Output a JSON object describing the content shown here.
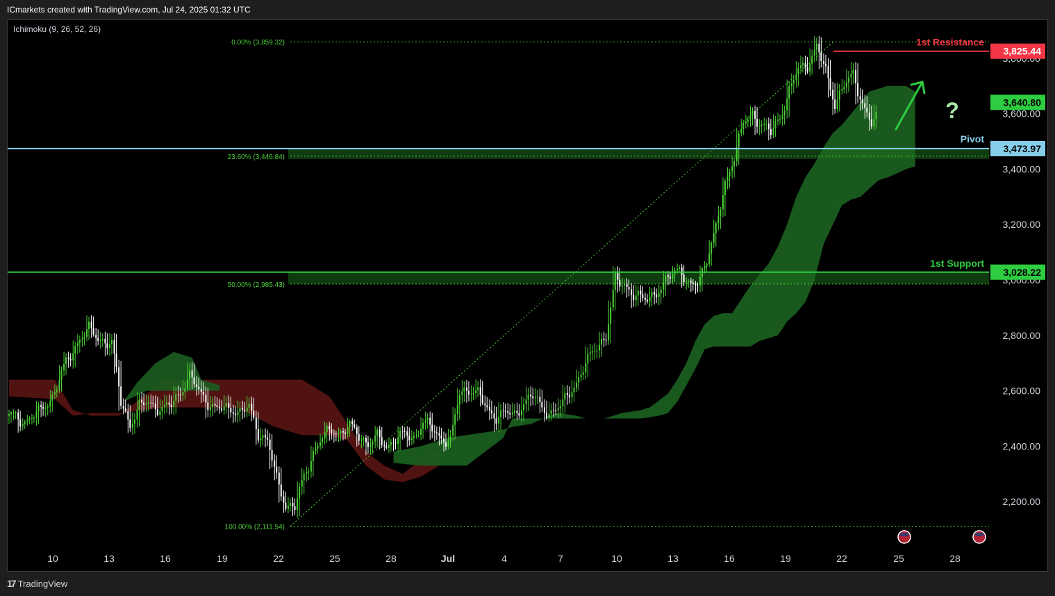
{
  "header": {
    "attribution": "ICmarkets created with TradingView.com, Jul 24, 2025 01:32 UTC"
  },
  "indicator": {
    "label": "Ichimoku (9, 26, 52, 26)"
  },
  "footer": {
    "brand": "TradingView"
  },
  "colors": {
    "background": "#000000",
    "up_candle": "#4cd137",
    "down_candle": "#ffffff",
    "bull_cloud": "#1b5e20",
    "bear_cloud": "#5a1414",
    "resistance": "#f23645",
    "pivot": "#87ceeb",
    "support": "#2ecc40",
    "fib": "#4cd137",
    "axis_text": "#d1d4dc"
  },
  "chart_data": {
    "type": "candlestick",
    "y_axis": {
      "ticks": [
        "2,200.00",
        "2,400.00",
        "2,600.00",
        "2,800.00",
        "3,000.00",
        "3,200.00",
        "3,400.00",
        "3,600.00",
        "3,800.00"
      ],
      "range": [
        2030,
        3935
      ]
    },
    "x_axis": {
      "labels": [
        "10",
        "13",
        "16",
        "19",
        "22",
        "25",
        "28",
        "Jul",
        "4",
        "7",
        "10",
        "13",
        "16",
        "19",
        "22",
        "25",
        "28"
      ]
    },
    "levels": [
      {
        "name": "1st Resistance",
        "value": 3825.44,
        "label": "3,825.44",
        "color": "#f23645"
      },
      {
        "name": "Pivot",
        "value": 3473.97,
        "label": "3,473.97",
        "color": "#87ceeb"
      },
      {
        "name": "1st Support",
        "value": 3028.22,
        "label": "3,028.22",
        "color": "#2ecc40"
      }
    ],
    "current_price": {
      "value": 3640.8,
      "label": "3,640.80"
    },
    "fibonacci": [
      {
        "ratio": "0.00%",
        "value": 3859.32,
        "label": "0.00% (3,859.32)"
      },
      {
        "ratio": "23.60%",
        "value": 3446.84,
        "label": "23.60% (3,446.84)"
      },
      {
        "ratio": "50.00%",
        "value": 2985.43,
        "label": "50.00% (2,985.43)"
      },
      {
        "ratio": "100.00%",
        "value": 2111.54,
        "label": "100.00% (2,111.54)"
      }
    ],
    "annotations": {
      "question_mark": "?"
    },
    "price_path": [
      [
        0,
        2510
      ],
      [
        3,
        2490
      ],
      [
        6,
        2520
      ],
      [
        9,
        2580
      ],
      [
        12,
        2700
      ],
      [
        15,
        2790
      ],
      [
        17,
        2820
      ],
      [
        19,
        2790
      ],
      [
        22,
        2770
      ],
      [
        24,
        2560
      ],
      [
        26,
        2480
      ],
      [
        28,
        2540
      ],
      [
        30,
        2560
      ],
      [
        33,
        2530
      ],
      [
        35,
        2550
      ],
      [
        37,
        2600
      ],
      [
        39,
        2650
      ],
      [
        41,
        2600
      ],
      [
        43,
        2560
      ],
      [
        45,
        2530
      ],
      [
        48,
        2540
      ],
      [
        50,
        2520
      ],
      [
        52,
        2540
      ],
      [
        54,
        2450
      ],
      [
        56,
        2420
      ],
      [
        58,
        2280
      ],
      [
        60,
        2190
      ],
      [
        62,
        2180
      ],
      [
        64,
        2290
      ],
      [
        66,
        2380
      ],
      [
        68,
        2430
      ],
      [
        70,
        2460
      ],
      [
        72,
        2450
      ],
      [
        74,
        2470
      ],
      [
        76,
        2440
      ],
      [
        78,
        2410
      ],
      [
        80,
        2430
      ],
      [
        82,
        2400
      ],
      [
        84,
        2430
      ],
      [
        86,
        2440
      ],
      [
        88,
        2430
      ],
      [
        90,
        2490
      ],
      [
        92,
        2460
      ],
      [
        94,
        2430
      ],
      [
        96,
        2420
      ],
      [
        98,
        2590
      ],
      [
        100,
        2610
      ],
      [
        102,
        2590
      ],
      [
        104,
        2530
      ],
      [
        106,
        2510
      ],
      [
        108,
        2520
      ],
      [
        110,
        2510
      ],
      [
        112,
        2560
      ],
      [
        114,
        2580
      ],
      [
        116,
        2540
      ],
      [
        118,
        2520
      ],
      [
        120,
        2540
      ],
      [
        122,
        2600
      ],
      [
        124,
        2640
      ],
      [
        126,
        2710
      ],
      [
        128,
        2770
      ],
      [
        130,
        2790
      ],
      [
        132,
        3000
      ],
      [
        134,
        2990
      ],
      [
        136,
        2940
      ],
      [
        138,
        2930
      ],
      [
        140,
        2950
      ],
      [
        142,
        2960
      ],
      [
        144,
        3020
      ],
      [
        146,
        3050
      ],
      [
        148,
        2970
      ],
      [
        150,
        2990
      ],
      [
        152,
        3080
      ],
      [
        154,
        3180
      ],
      [
        156,
        3350
      ],
      [
        158,
        3450
      ],
      [
        160,
        3560
      ],
      [
        162,
        3600
      ],
      [
        164,
        3560
      ],
      [
        166,
        3530
      ],
      [
        168,
        3590
      ],
      [
        170,
        3680
      ],
      [
        172,
        3760
      ],
      [
        174,
        3780
      ],
      [
        176,
        3840
      ],
      [
        178,
        3750
      ],
      [
        180,
        3640
      ],
      [
        182,
        3700
      ],
      [
        184,
        3740
      ],
      [
        186,
        3640
      ],
      [
        188,
        3560
      ],
      [
        190,
        3600
      ]
    ],
    "cloud": {
      "bear_segment_1": [
        [
          0,
          2640
        ],
        [
          10,
          2640
        ],
        [
          14,
          2530
        ],
        [
          18,
          2510
        ],
        [
          24,
          2510
        ],
        [
          34,
          2640
        ],
        [
          50,
          2640
        ],
        [
          58,
          2640
        ],
        [
          64,
          2640
        ],
        [
          70,
          2580
        ],
        [
          74,
          2480
        ],
        [
          78,
          2380
        ],
        [
          82,
          2330
        ],
        [
          86,
          2300
        ],
        [
          90,
          2350
        ],
        [
          92,
          2380
        ],
        [
          94,
          2380
        ]
      ],
      "bull_cloud": "rendered as filled region from Jul 7 onward expanding up to ~3,700"
    }
  }
}
